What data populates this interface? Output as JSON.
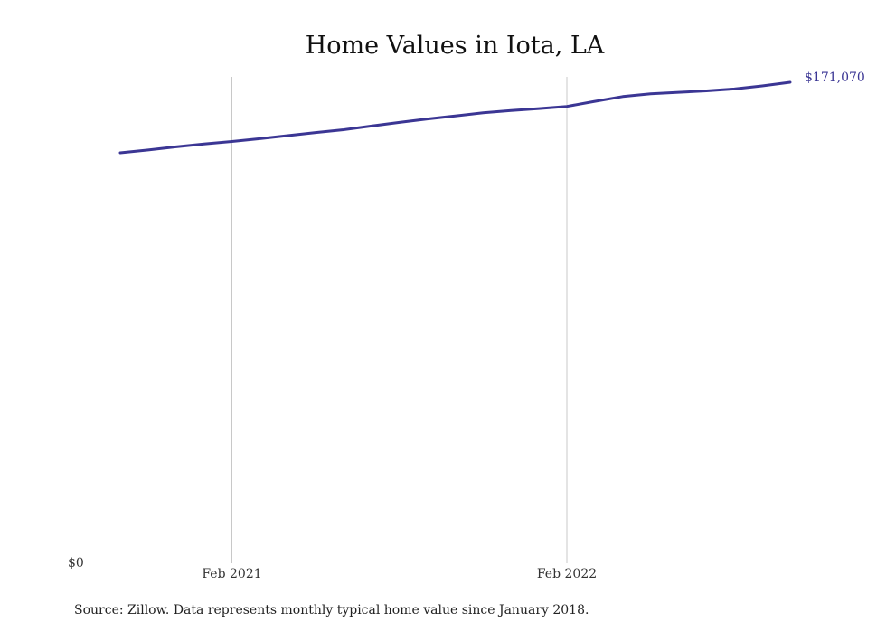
{
  "chart_data": {
    "type": "line",
    "title": "Home Values in Iota, LA",
    "xlabel": "",
    "ylabel": "",
    "x_tick_labels": [
      "Feb 2021",
      "Feb 2022"
    ],
    "y_tick_labels": [
      "$0"
    ],
    "end_label": "$171,070",
    "ylim": [
      0,
      173000
    ],
    "grid": "vertical lines at x ticks",
    "series": [
      {
        "color": "#3b3694",
        "x": [
          "2020-10",
          "2020-11",
          "2020-12",
          "2021-01",
          "2021-02",
          "2021-03",
          "2021-04",
          "2021-05",
          "2021-06",
          "2021-07",
          "2021-08",
          "2021-09",
          "2021-10",
          "2021-11",
          "2021-12",
          "2022-01",
          "2022-02",
          "2022-03",
          "2022-04",
          "2022-05",
          "2022-06",
          "2022-07",
          "2022-08",
          "2022-09",
          "2022-10"
        ],
        "values": [
          146000,
          147000,
          148100,
          149100,
          150000,
          151000,
          152100,
          153200,
          154200,
          155500,
          156800,
          158000,
          159100,
          160200,
          161000,
          161700,
          162500,
          164300,
          166000,
          167000,
          167500,
          168000,
          168700,
          169800,
          171070
        ]
      }
    ]
  },
  "source_note": "Source: Zillow. Data represents monthly typical home value since January 2018."
}
